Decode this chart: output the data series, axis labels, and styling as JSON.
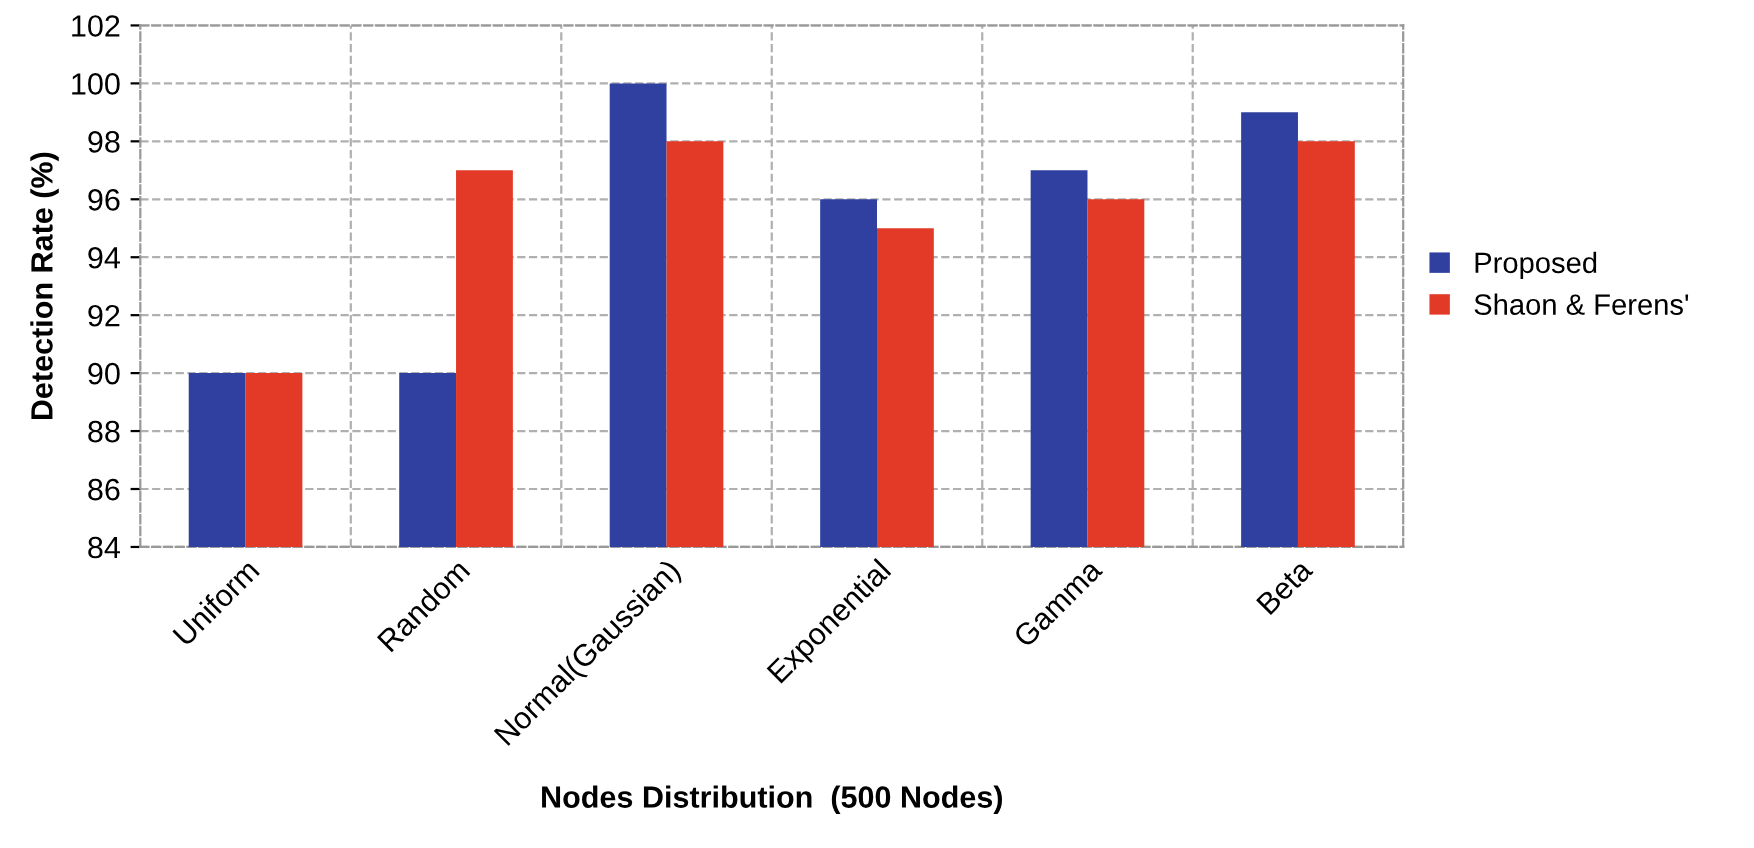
{
  "chart_data": {
    "type": "bar",
    "xlabel": "Nodes Distribution  (500 Nodes)",
    "ylabel": "Detection Rate (%)",
    "categories": [
      "Uniform",
      "Random",
      "Normal(Gaussian)",
      "Exponential",
      "Gamma",
      "Beta"
    ],
    "series": [
      {
        "name": "Proposed",
        "color": "#2f40a0",
        "values": [
          90,
          90,
          100,
          96,
          97,
          99
        ]
      },
      {
        "name": "Shaon & Ferens'",
        "color": "#e23a27",
        "values": [
          90,
          97,
          98,
          95,
          96,
          98
        ]
      }
    ],
    "ylim": [
      84,
      102
    ],
    "yticks": [
      84,
      86,
      88,
      90,
      92,
      94,
      96,
      98,
      100,
      102
    ],
    "grid": true,
    "legend": "right"
  }
}
